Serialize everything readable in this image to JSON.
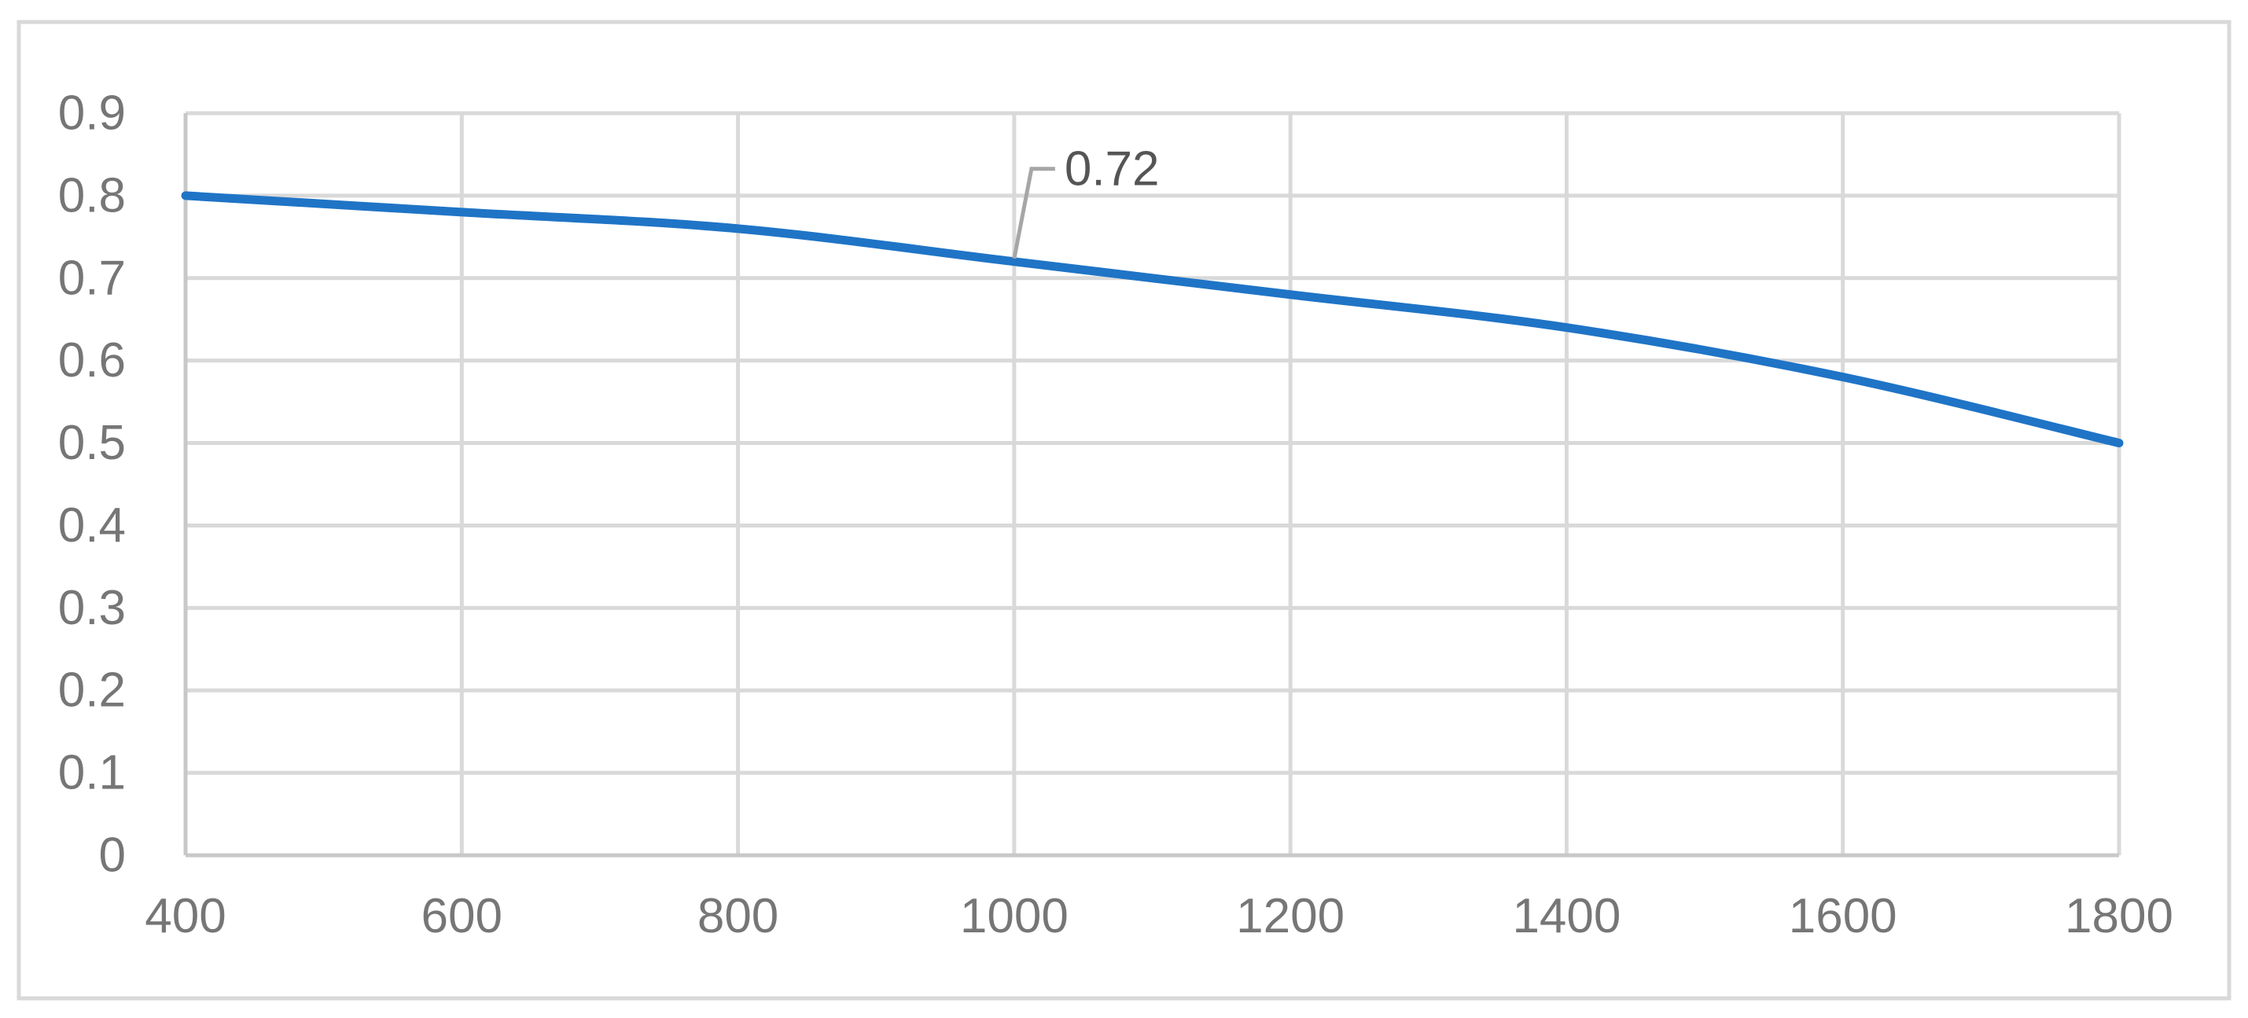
{
  "chart_data": {
    "type": "line",
    "title": "",
    "xlabel": "",
    "ylabel": "",
    "x": [
      400,
      600,
      800,
      1000,
      1200,
      1400,
      1600,
      1800
    ],
    "series": [
      {
        "values": [
          0.8,
          0.78,
          0.76,
          0.72,
          0.68,
          0.64,
          0.58,
          0.5
        ]
      }
    ],
    "xlim": [
      400,
      1800
    ],
    "ylim": [
      0,
      0.9
    ],
    "x_ticks": [
      400,
      600,
      800,
      1000,
      1200,
      1400,
      1600,
      1800
    ],
    "y_ticks": [
      0,
      0.1,
      0.2,
      0.3,
      0.4,
      0.5,
      0.6,
      0.7,
      0.8,
      0.9
    ],
    "x_tick_labels": [
      "400",
      "600",
      "800",
      "1000",
      "1200",
      "1400",
      "1600",
      "1800"
    ],
    "y_tick_labels": [
      "0",
      "0.1",
      "0.2",
      "0.3",
      "0.4",
      "0.5",
      "0.6",
      "0.7",
      "0.8",
      "0.9"
    ],
    "grid": true,
    "legend": "none",
    "smoothed": true,
    "annotations": [
      {
        "x": 1000,
        "y": 0.72,
        "text": "0.72"
      }
    ],
    "colors": {
      "series": "#1f74c6",
      "grid": "#d9d9d9",
      "axis": "#c8c8c8",
      "tick_text": "#767676",
      "annotation_text": "#555555",
      "annotation_leader": "#a6a6a6",
      "frame": "#d9d9d9"
    }
  }
}
